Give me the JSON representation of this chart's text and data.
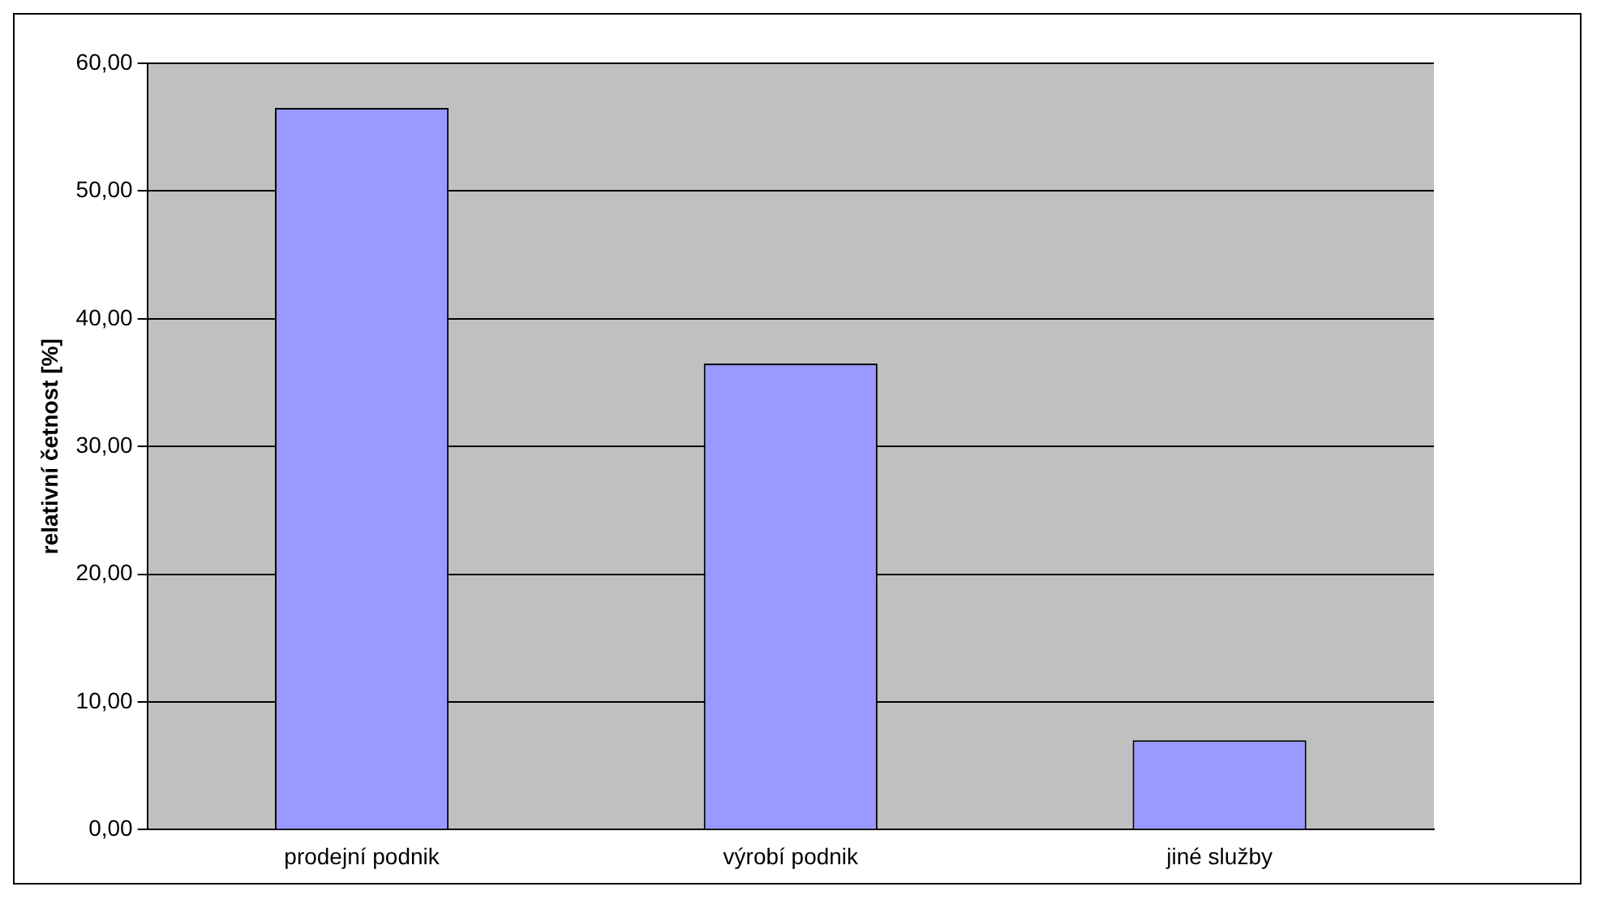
{
  "chart_data": {
    "type": "bar",
    "ylabel": "relativní četnost [%]",
    "categories": [
      "prodejní podnik",
      "výrobí podnik",
      "jiné služby"
    ],
    "series": [
      {
        "color": "#9999ff",
        "values": [
          56.5,
          36.5,
          7.0
        ]
      }
    ],
    "ylim": [
      0,
      60
    ],
    "yticks": [
      {
        "value": 0,
        "label": "0,00"
      },
      {
        "value": 10,
        "label": "10,00"
      },
      {
        "value": 20,
        "label": "20,00"
      },
      {
        "value": 30,
        "label": "30,00"
      },
      {
        "value": 40,
        "label": "40,00"
      },
      {
        "value": 50,
        "label": "50,00"
      },
      {
        "value": 60,
        "label": "60,00"
      }
    ],
    "grid": "y",
    "legend": false
  }
}
